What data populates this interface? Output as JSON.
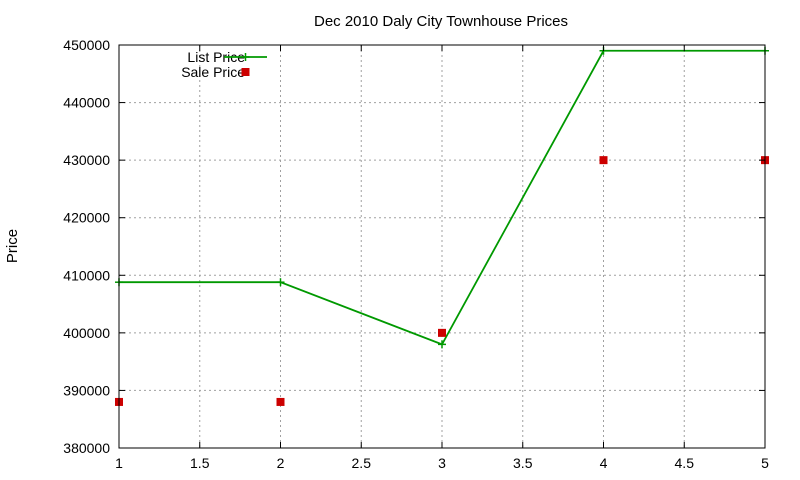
{
  "chart_data": {
    "type": "line",
    "title": "Dec 2010 Daly City Townhouse Prices",
    "xlabel": "",
    "ylabel": "Price",
    "xlim": [
      1,
      5
    ],
    "ylim": [
      380000,
      450000
    ],
    "xticks": [
      1,
      1.5,
      2,
      2.5,
      3,
      3.5,
      4,
      4.5,
      5
    ],
    "yticks": [
      380000,
      390000,
      400000,
      410000,
      420000,
      430000,
      440000,
      450000
    ],
    "grid": true,
    "legend_position": "top-left",
    "series": [
      {
        "name": "List Price",
        "style": "linespoints",
        "marker": "plus",
        "color": "#009900",
        "x": [
          1,
          2,
          3,
          4,
          5
        ],
        "values": [
          408800,
          408800,
          398000,
          449000,
          449000
        ]
      },
      {
        "name": "Sale Price",
        "style": "points",
        "marker": "square",
        "color": "#cc0000",
        "x": [
          1,
          2,
          3,
          4,
          5
        ],
        "values": [
          388000,
          388000,
          400000,
          430000,
          430000
        ]
      }
    ]
  }
}
